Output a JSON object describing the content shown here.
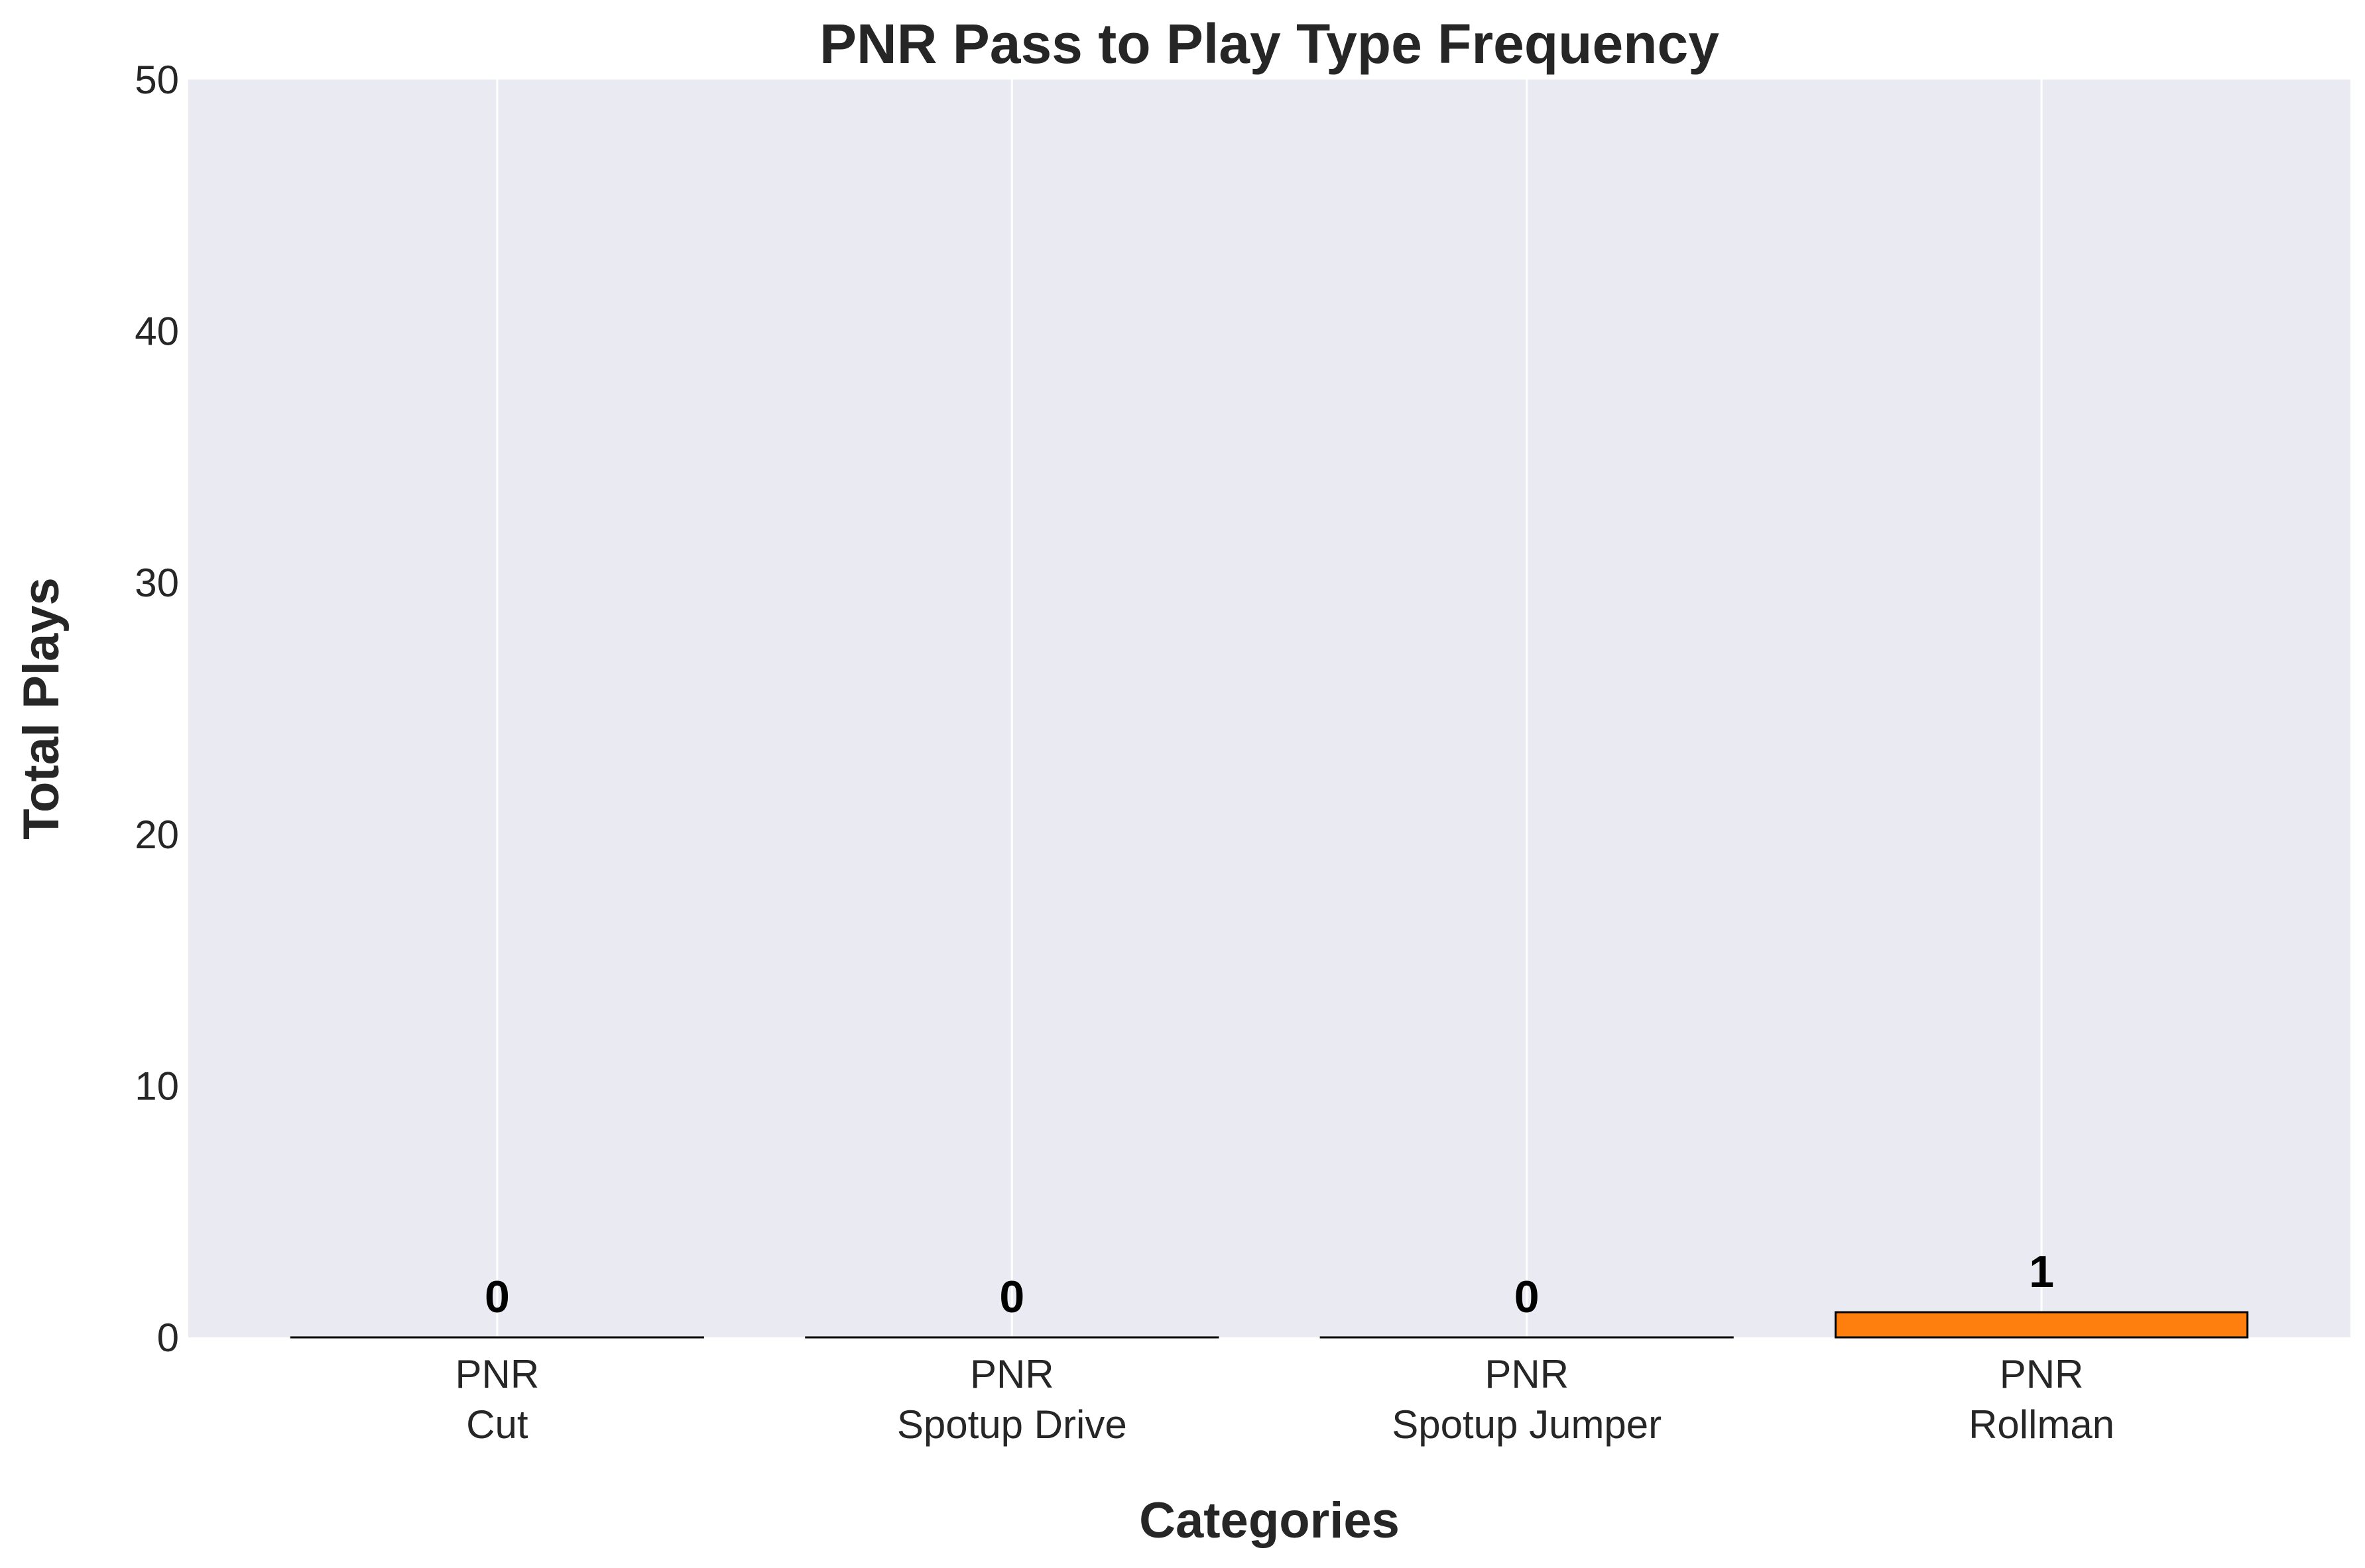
{
  "chart_data": {
    "type": "bar",
    "title": "PNR Pass to Play Type Frequency",
    "xlabel": "Categories",
    "ylabel": "Total Plays",
    "categories": [
      [
        "PNR",
        "Cut"
      ],
      [
        "PNR",
        "Spotup Drive"
      ],
      [
        "PNR",
        "Spotup Jumper"
      ],
      [
        "PNR",
        "Rollman"
      ]
    ],
    "values": [
      0,
      0,
      0,
      1
    ],
    "data_labels": [
      "0",
      "0",
      "0",
      "1"
    ],
    "ylim": [
      0,
      50
    ],
    "yticks": [
      0,
      10,
      20,
      30,
      40,
      50
    ],
    "ytick_labels": [
      "0",
      "10",
      "20",
      "30",
      "40",
      "50"
    ],
    "grid": true,
    "grid_axis": "x",
    "legend": "none",
    "colors": {
      "plot_background": "#eaeaf2",
      "grid": "#ffffff",
      "bar_fill": "#ff7f0e",
      "bar_edge": "#000000",
      "text": "#262626"
    }
  }
}
